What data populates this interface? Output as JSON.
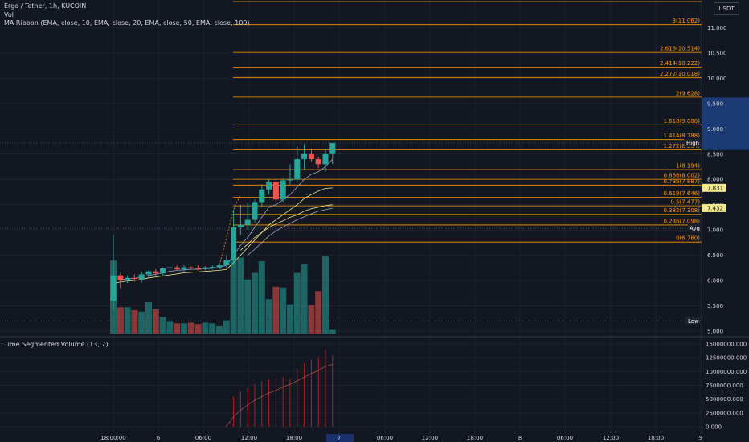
{
  "chart_data": {
    "type": "candlestick",
    "symbol": "Ergo / Tether, 1h, KUCOIN",
    "indicators": [
      "Vol",
      "MA Ribbon (EMA, close, 10, EMA, close, 20, EMA, close, 50, EMA, close, 100)"
    ],
    "currency": "USDT",
    "price_axis": {
      "ylim": [
        4.95,
        11.55
      ],
      "ticks": [
        "11.000",
        "10.500",
        "10.000",
        "9.500",
        "9.000",
        "8.500",
        "8.000",
        "7.500",
        "7.000",
        "6.500",
        "6.000",
        "5.500",
        "5.000"
      ]
    },
    "time_axis": {
      "labels": [
        "18:00:00",
        "6",
        "06:00",
        "12:00",
        "18:00",
        "7",
        "06:00",
        "12:00",
        "18:00",
        "8",
        "06:00",
        "12:00",
        "18:00",
        "9"
      ]
    },
    "fib_levels": [
      {
        "label": "3(11.062)",
        "price": 11.062
      },
      {
        "label": "2.618(10.514)",
        "price": 10.514
      },
      {
        "label": "2.414(10.222)",
        "price": 10.222
      },
      {
        "label": "2.272(10.018)",
        "price": 10.018
      },
      {
        "label": "2(9.628)",
        "price": 9.628
      },
      {
        "label": "1.618(9.080)",
        "price": 9.08
      },
      {
        "label": "1.414(8.788)",
        "price": 8.788
      },
      {
        "label": "1.272(8.584)",
        "price": 8.584
      },
      {
        "label": "1(8.194)",
        "price": 8.194
      },
      {
        "label": "0.866(8.002)",
        "price": 8.002
      },
      {
        "label": "0.786(7.887)",
        "price": 7.887
      },
      {
        "label": "0.618(7.646)",
        "price": 7.646
      },
      {
        "label": "0.5(7.477)",
        "price": 7.477
      },
      {
        "label": "0.382(7.308)",
        "price": 7.308
      },
      {
        "label": "0.236(7.098)",
        "price": 7.098
      },
      {
        "label": "0(6.760)",
        "price": 6.76
      }
    ],
    "markers": {
      "high": {
        "label": "High",
        "price": 8.72
      },
      "ema_a": {
        "label": "7.831",
        "price": 7.831
      },
      "ema_b": {
        "label": "7.432",
        "price": 7.432
      },
      "avg": {
        "label": "Avg",
        "price": 7.03
      },
      "low": {
        "label": "Low",
        "price": 5.2
      }
    },
    "candles": [
      {
        "o": 5.6,
        "h": 6.9,
        "l": 5.4,
        "c": 6.1
      },
      {
        "o": 6.1,
        "h": 6.15,
        "l": 5.85,
        "c": 6.0
      },
      {
        "o": 6.0,
        "h": 6.1,
        "l": 5.95,
        "c": 6.05
      },
      {
        "o": 6.05,
        "h": 6.12,
        "l": 5.98,
        "c": 6.03
      },
      {
        "o": 6.02,
        "h": 6.18,
        "l": 5.96,
        "c": 6.12
      },
      {
        "o": 6.12,
        "h": 6.2,
        "l": 6.05,
        "c": 6.18
      },
      {
        "o": 6.18,
        "h": 6.22,
        "l": 6.1,
        "c": 6.14
      },
      {
        "o": 6.14,
        "h": 6.26,
        "l": 6.1,
        "c": 6.24
      },
      {
        "o": 6.24,
        "h": 6.28,
        "l": 6.2,
        "c": 6.26
      },
      {
        "o": 6.26,
        "h": 6.3,
        "l": 6.2,
        "c": 6.22
      },
      {
        "o": 6.22,
        "h": 6.3,
        "l": 6.18,
        "c": 6.26
      },
      {
        "o": 6.26,
        "h": 6.28,
        "l": 6.22,
        "c": 6.25
      },
      {
        "o": 6.25,
        "h": 6.3,
        "l": 6.2,
        "c": 6.23
      },
      {
        "o": 6.23,
        "h": 6.28,
        "l": 6.2,
        "c": 6.26
      },
      {
        "o": 6.26,
        "h": 6.3,
        "l": 6.22,
        "c": 6.27
      },
      {
        "o": 6.27,
        "h": 6.35,
        "l": 6.22,
        "c": 6.3
      },
      {
        "o": 6.3,
        "h": 6.5,
        "l": 6.25,
        "c": 6.4
      },
      {
        "o": 6.4,
        "h": 7.4,
        "l": 6.3,
        "c": 7.05
      },
      {
        "o": 7.05,
        "h": 7.5,
        "l": 6.9,
        "c": 7.1
      },
      {
        "o": 7.1,
        "h": 7.55,
        "l": 7.0,
        "c": 7.2
      },
      {
        "o": 7.2,
        "h": 7.6,
        "l": 7.15,
        "c": 7.55
      },
      {
        "o": 7.55,
        "h": 7.9,
        "l": 7.45,
        "c": 7.8
      },
      {
        "o": 7.8,
        "h": 8.0,
        "l": 7.7,
        "c": 7.95
      },
      {
        "o": 7.95,
        "h": 8.0,
        "l": 7.55,
        "c": 7.6
      },
      {
        "o": 7.6,
        "h": 8.02,
        "l": 7.55,
        "c": 7.98
      },
      {
        "o": 7.98,
        "h": 8.3,
        "l": 7.9,
        "c": 8.0
      },
      {
        "o": 8.0,
        "h": 8.65,
        "l": 7.95,
        "c": 8.4
      },
      {
        "o": 8.4,
        "h": 8.7,
        "l": 8.2,
        "c": 8.5
      },
      {
        "o": 8.5,
        "h": 8.6,
        "l": 8.35,
        "c": 8.4
      },
      {
        "o": 8.4,
        "h": 8.45,
        "l": 8.22,
        "c": 8.3
      },
      {
        "o": 8.3,
        "h": 8.6,
        "l": 8.15,
        "c": 8.5
      },
      {
        "o": 8.5,
        "h": 8.7,
        "l": 8.3,
        "c": 8.72
      }
    ],
    "volume": [
      1.0,
      0.36,
      0.36,
      0.32,
      0.3,
      0.43,
      0.33,
      0.23,
      0.16,
      0.14,
      0.14,
      0.15,
      0.13,
      0.15,
      0.14,
      0.1,
      0.18,
      1.01,
      1.04,
      0.74,
      0.83,
      0.99,
      0.47,
      0.64,
      0.63,
      0.4,
      0.83,
      0.95,
      0.39,
      0.58,
      1.06,
      0.05
    ],
    "ema_lines": {
      "ema10": [
        6.0,
        6.02,
        6.03,
        6.04,
        6.07,
        6.1,
        6.12,
        6.15,
        6.18,
        6.2,
        6.21,
        6.22,
        6.22,
        6.23,
        6.24,
        6.26,
        6.3,
        6.5,
        6.7,
        6.85,
        7.05,
        7.25,
        7.45,
        7.5,
        7.6,
        7.7,
        7.85,
        8.0,
        8.1,
        8.15,
        8.25,
        8.4
      ],
      "ema20": [
        5.95,
        5.97,
        5.99,
        6.0,
        6.02,
        6.05,
        6.07,
        6.09,
        6.11,
        6.13,
        6.15,
        6.16,
        6.17,
        6.18,
        6.19,
        6.2,
        6.22,
        6.35,
        6.5,
        6.65,
        6.8,
        6.95,
        7.1,
        7.2,
        7.3,
        7.4,
        7.5,
        7.62,
        7.7,
        7.77,
        7.82,
        7.83
      ],
      "ema50": [
        null,
        null,
        null,
        null,
        null,
        null,
        null,
        null,
        null,
        null,
        null,
        null,
        null,
        null,
        null,
        null,
        null,
        null,
        6.6,
        6.72,
        6.85,
        6.95,
        7.05,
        7.12,
        7.18,
        7.25,
        7.3,
        7.37,
        7.42,
        7.45,
        7.48,
        7.5
      ],
      "ema100": [
        null,
        null,
        null,
        null,
        null,
        null,
        null,
        null,
        null,
        null,
        null,
        null,
        null,
        null,
        null,
        null,
        null,
        null,
        null,
        6.5,
        6.62,
        6.75,
        6.88,
        6.98,
        7.06,
        7.13,
        7.2,
        7.26,
        7.32,
        7.37,
        7.4,
        7.43
      ]
    },
    "tsv": {
      "title": "Time Segmented Volume (13, 7)",
      "ylim": [
        -1000000,
        16000000
      ],
      "ticks": [
        "15000000.000",
        "12500000.000",
        "10000000.000",
        "7500000.000",
        "5000000.000",
        "2500000.000",
        "0.000"
      ],
      "values": [
        0,
        0,
        0,
        0,
        0,
        0,
        0,
        0,
        0,
        0,
        0,
        0,
        0,
        0,
        0,
        0,
        300000,
        5500000,
        6500000,
        7000000,
        7800000,
        8300000,
        8500000,
        8800000,
        9000000,
        8700000,
        10500000,
        11500000,
        12200000,
        12600000,
        14000000,
        13000000
      ],
      "signal": [
        0,
        0,
        0,
        0,
        0,
        0,
        0,
        0,
        0,
        0,
        0,
        0,
        0,
        0,
        0,
        0,
        100000,
        1800000,
        3000000,
        4000000,
        4800000,
        5500000,
        6100000,
        6600000,
        7200000,
        7700000,
        8300000,
        9000000,
        9600000,
        10200000,
        10900000,
        11300000
      ]
    },
    "colors": {
      "up": "#26a69a",
      "down": "#ef5350",
      "fib": "#ff9800",
      "ema": "#f0e68c",
      "ema_slow": "#9aa6c4",
      "bg": "#131722",
      "grid": "#2a2e39"
    }
  }
}
